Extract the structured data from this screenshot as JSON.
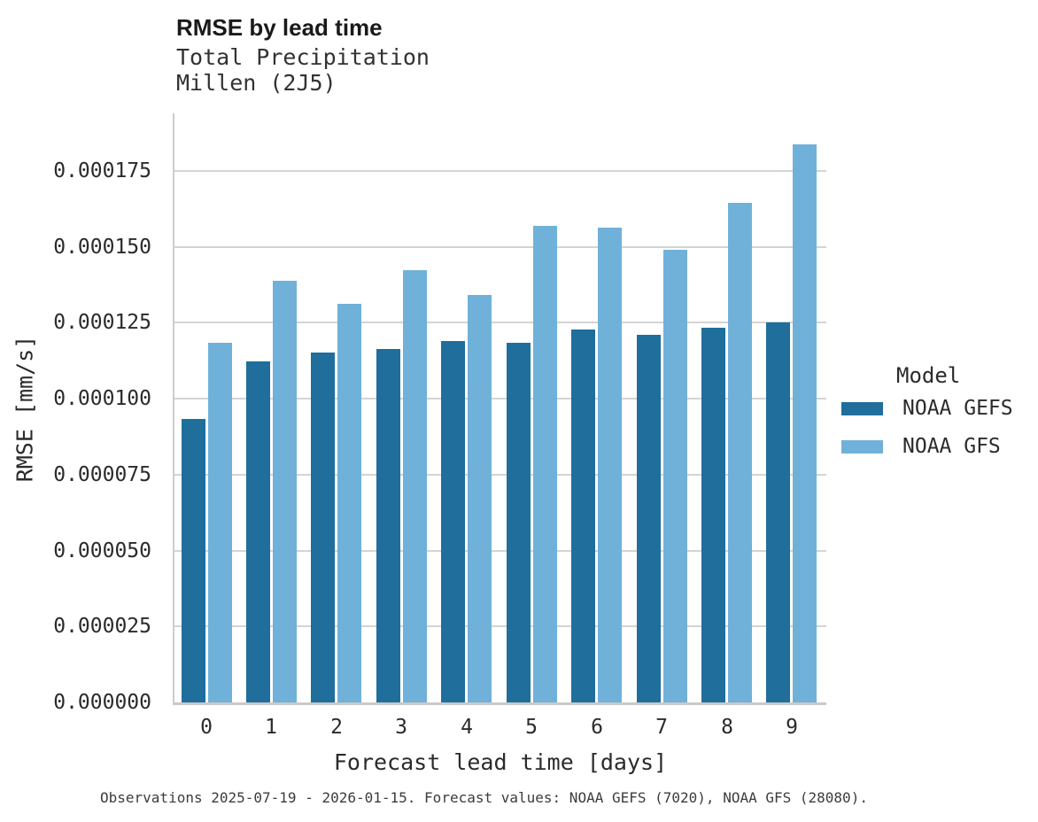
{
  "header": {
    "title": "RMSE by lead time",
    "subtitle_line1": "Total Precipitation",
    "subtitle_line2": "Millen (2J5)"
  },
  "caption": "Observations 2025-07-19 - 2026-01-15. Forecast values: NOAA GEFS (7020), NOAA GFS (28080).",
  "legend": {
    "title": "Model",
    "entries": [
      {
        "label": "NOAA GEFS",
        "color": "#1f6e9c"
      },
      {
        "label": "NOAA GFS",
        "color": "#70b1d9"
      }
    ]
  },
  "chart_data": {
    "type": "bar",
    "title": "RMSE by lead time",
    "subtitle": [
      "Total Precipitation",
      "Millen (2J5)"
    ],
    "xlabel": "Forecast lead time [days]",
    "ylabel": "RMSE [mm/s]",
    "categories": [
      "0",
      "1",
      "2",
      "3",
      "4",
      "5",
      "6",
      "7",
      "8",
      "9"
    ],
    "series": [
      {
        "name": "NOAA GEFS",
        "color": "#1f6e9c",
        "values": [
          9.33e-05,
          0.0001123,
          0.0001152,
          0.0001164,
          0.000119,
          0.0001184,
          0.0001228,
          0.000121,
          0.0001234,
          0.0001251
        ]
      },
      {
        "name": "NOAA GFS",
        "color": "#70b1d9",
        "values": [
          0.0001184,
          0.0001388,
          0.0001313,
          0.0001423,
          0.0001342,
          0.0001569,
          0.0001563,
          0.000149,
          0.0001645,
          0.0001838
        ]
      }
    ],
    "ylim": [
      0,
      0.000194
    ],
    "yticks": [
      0.0,
      2.5e-05,
      5e-05,
      7.5e-05,
      0.0001,
      0.000125,
      0.00015,
      0.000175
    ],
    "ytick_labels": [
      "0.000000",
      "0.000025",
      "0.000050",
      "0.000075",
      "0.000100",
      "0.000125",
      "0.000150",
      "0.000175"
    ],
    "grid": "horizontal",
    "legend_position": "right",
    "legend_title": "Model"
  }
}
